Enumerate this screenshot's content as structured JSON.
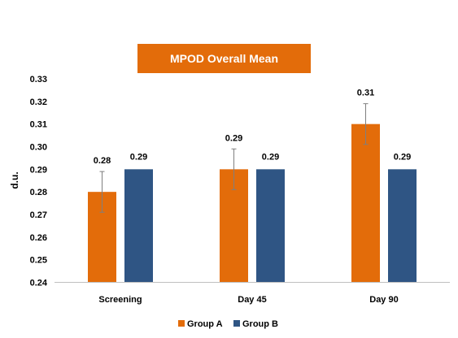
{
  "chart_data": {
    "type": "bar",
    "title": "MPOD Overall Mean",
    "ylabel": "d.u.",
    "xlabel": "",
    "categories": [
      "Screening",
      "Day 45",
      "Day 90"
    ],
    "ylim": [
      0.24,
      0.33
    ],
    "yticks": [
      "0.24",
      "0.25",
      "0.26",
      "0.27",
      "0.28",
      "0.29",
      "0.30",
      "0.31",
      "0.32",
      "0.33"
    ],
    "series": [
      {
        "name": "Group A",
        "color": "#E36C0A",
        "values": [
          0.28,
          0.29,
          0.31
        ],
        "labels": [
          "0.28",
          "0.29",
          "0.31"
        ],
        "error": [
          0.009,
          0.009,
          0.009
        ]
      },
      {
        "name": "Group B",
        "color": "#2F5584",
        "values": [
          0.29,
          0.29,
          0.29
        ],
        "labels": [
          "0.29",
          "0.29",
          "0.29"
        ]
      }
    ],
    "title_box_color": "#E36C0A",
    "grid": false,
    "legend_position": "bottom"
  }
}
